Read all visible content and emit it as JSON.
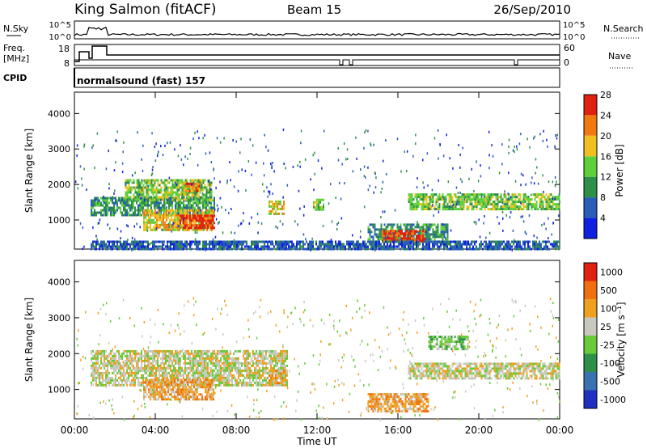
{
  "header": {
    "station": "King Salmon (fitACF)",
    "beam": "Beam 15",
    "date": "26/Sep/2010"
  },
  "mini_panels": {
    "nsky_label": "N.Sky",
    "nsearch_label": "N.Search",
    "nsky_ticks": [
      "10^5",
      "10^0"
    ],
    "nsearch_ticks": [
      "10^5",
      "10^0"
    ],
    "freq_label_1": "Freq.",
    "freq_label_2": "[MHz]",
    "freq_ticks": [
      "18",
      "8"
    ],
    "nave_label": "Nave",
    "nave_ticks": [
      "60",
      "0"
    ],
    "cpid_label": "CPID",
    "cpid_text": "normalsound (fast) 157"
  },
  "chart_data": [
    {
      "type": "heatmap",
      "panel": "power",
      "ylabel": "Slant Range [km]",
      "ylim": [
        180,
        4600
      ],
      "yticks": [
        1000,
        2000,
        3000,
        4000
      ],
      "xlim": [
        0,
        24
      ],
      "colorbar": {
        "label": "Power [dB]",
        "ticks": [
          "4",
          "8",
          "12",
          "16",
          "20",
          "24",
          "28"
        ],
        "colors": [
          "#1020e0",
          "#2a5cb8",
          "#2e8f4a",
          "#5fcf3a",
          "#f0c020",
          "#f07a10",
          "#e02010"
        ]
      },
      "regions": [
        {
          "t0": 0.8,
          "t1": 6.9,
          "r0": 1150,
          "r1": 1650,
          "level": 2
        },
        {
          "t0": 2.5,
          "t1": 6.8,
          "r0": 1600,
          "r1": 2150,
          "level": 3
        },
        {
          "t0": 3.4,
          "t1": 6.9,
          "r0": 700,
          "r1": 1300,
          "level": 4
        },
        {
          "t0": 5.2,
          "t1": 6.9,
          "r0": 750,
          "r1": 1150,
          "level": 6
        },
        {
          "t0": 5.5,
          "t1": 6.2,
          "r0": 1800,
          "r1": 2050,
          "level": 5
        },
        {
          "t0": 9.6,
          "t1": 10.4,
          "r0": 1150,
          "r1": 1550,
          "level": 4
        },
        {
          "t0": 11.8,
          "t1": 12.3,
          "r0": 1300,
          "r1": 1600,
          "level": 3
        },
        {
          "t0": 14.5,
          "t1": 18.5,
          "r0": 400,
          "r1": 900,
          "level": 2
        },
        {
          "t0": 15.2,
          "t1": 17.3,
          "r0": 420,
          "r1": 720,
          "level": 6
        },
        {
          "t0": 16.5,
          "t1": 24.0,
          "r0": 1300,
          "r1": 1750,
          "level": 3
        },
        {
          "t0": 0.8,
          "t1": 24.0,
          "r0": 200,
          "r1": 420,
          "level": 1
        }
      ]
    },
    {
      "type": "heatmap",
      "panel": "velocity",
      "ylabel": "Slant Range [km]",
      "xlabel": "Time UT",
      "ylim": [
        180,
        4600
      ],
      "yticks": [
        1000,
        2000,
        3000,
        4000
      ],
      "xlim": [
        0,
        24
      ],
      "xticks": [
        "00:00",
        "04:00",
        "08:00",
        "12:00",
        "16:00",
        "20:00",
        "00:00"
      ],
      "colorbar": {
        "label": "Velocity [m s⁻¹]",
        "ticks": [
          "1000",
          "500",
          "100",
          "25",
          "-25",
          "-100",
          "-500",
          "-1000"
        ],
        "colors": [
          "#2030c0",
          "#3a72b0",
          "#2e8f4a",
          "#6acb3a",
          "#c8c8c0",
          "#f0a020",
          "#f07010",
          "#e02010"
        ]
      },
      "regions": [
        {
          "t0": 0.8,
          "t1": 10.5,
          "r0": 1150,
          "r1": 2100,
          "level": 4
        },
        {
          "t0": 3.4,
          "t1": 6.9,
          "r0": 700,
          "r1": 1300,
          "level": 5
        },
        {
          "t0": 9.6,
          "t1": 10.4,
          "r0": 1150,
          "r1": 1550,
          "level": 5
        },
        {
          "t0": 14.5,
          "t1": 17.5,
          "r0": 400,
          "r1": 900,
          "level": 5
        },
        {
          "t0": 16.5,
          "t1": 24.0,
          "r0": 1300,
          "r1": 1750,
          "level": 4
        },
        {
          "t0": 17.5,
          "t1": 19.5,
          "r0": 2100,
          "r1": 2500,
          "level": 3
        }
      ]
    }
  ]
}
